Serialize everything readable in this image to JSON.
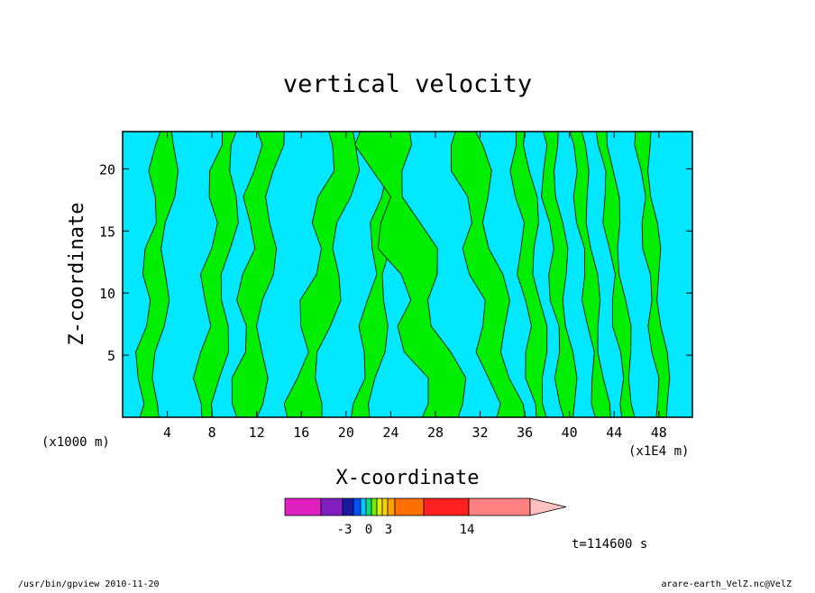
{
  "chart_data": {
    "type": "heatmap",
    "title": "vertical velocity",
    "xlabel": "X-coordinate",
    "ylabel": "Z-coordinate",
    "x_unit_left": "(x1000 m)",
    "x_unit_right": "(x1E4 m)",
    "xlim": [
      0,
      51
    ],
    "ylim": [
      0,
      23
    ],
    "x_ticks": [
      {
        "value": 4,
        "label": "4"
      },
      {
        "value": 8,
        "label": "8"
      },
      {
        "value": 12,
        "label": "12"
      },
      {
        "value": 16,
        "label": "16"
      },
      {
        "value": 20,
        "label": "20"
      },
      {
        "value": 24,
        "label": "24"
      },
      {
        "value": 28,
        "label": "28"
      },
      {
        "value": 32,
        "label": "32"
      },
      {
        "value": 36,
        "label": "36"
      },
      {
        "value": 40,
        "label": "40"
      },
      {
        "value": 44,
        "label": "44"
      },
      {
        "value": 48,
        "label": "48"
      }
    ],
    "y_ticks": [
      {
        "value": 5,
        "label": "5"
      },
      {
        "value": 10,
        "label": "10"
      },
      {
        "value": 15,
        "label": "15"
      },
      {
        "value": 20,
        "label": "20"
      }
    ],
    "field_colors": {
      "negative": "#00e8ff",
      "positive": "#00ee00"
    },
    "updraft_bands": [
      {
        "xb": 2.0,
        "xt": 4.0,
        "w": 1.6
      },
      {
        "xb": 7.5,
        "xt": 9.5,
        "w": 1.8
      },
      {
        "xb": 11.0,
        "xt": 13.0,
        "w": 2.0
      },
      {
        "xb": 16.0,
        "xt": 20.0,
        "w": 2.2
      },
      {
        "xb": 21.5,
        "xt": 24.5,
        "w": 1.6
      },
      {
        "xb": 29.0,
        "xt": 23.0,
        "w": 3.2
      },
      {
        "xb": 34.5,
        "xt": 30.5,
        "w": 2.2
      },
      {
        "xb": 37.5,
        "xt": 35.5,
        "w": 1.4
      },
      {
        "xb": 40.0,
        "xt": 38.0,
        "w": 1.2
      },
      {
        "xb": 43.0,
        "xt": 40.5,
        "w": 1.0
      },
      {
        "xb": 45.5,
        "xt": 43.0,
        "w": 1.0
      },
      {
        "xb": 48.5,
        "xt": 46.5,
        "w": 1.0
      }
    ],
    "colorbar": {
      "levels": [
        {
          "color": "#e020c0"
        },
        {
          "color": "#8020c0"
        },
        {
          "color": "#1a1aa0"
        },
        {
          "color": "#0050ff"
        },
        {
          "color": "#00c8ff"
        },
        {
          "color": "#00e080"
        },
        {
          "color": "#70f000"
        },
        {
          "color": "#e0f000"
        },
        {
          "color": "#ffd000"
        },
        {
          "color": "#ffa000"
        },
        {
          "color": "#ff7000"
        },
        {
          "color": "#ff2020"
        },
        {
          "color": "#ff8080"
        }
      ],
      "extension_color": "#ffc0c0",
      "labels": [
        "-3",
        "0",
        "3",
        "14"
      ]
    },
    "time_label": "t=114600 s"
  },
  "footer": {
    "left": "/usr/bin/gpview   2010-11-20",
    "right": "arare-earth_VelZ.nc@VelZ"
  }
}
